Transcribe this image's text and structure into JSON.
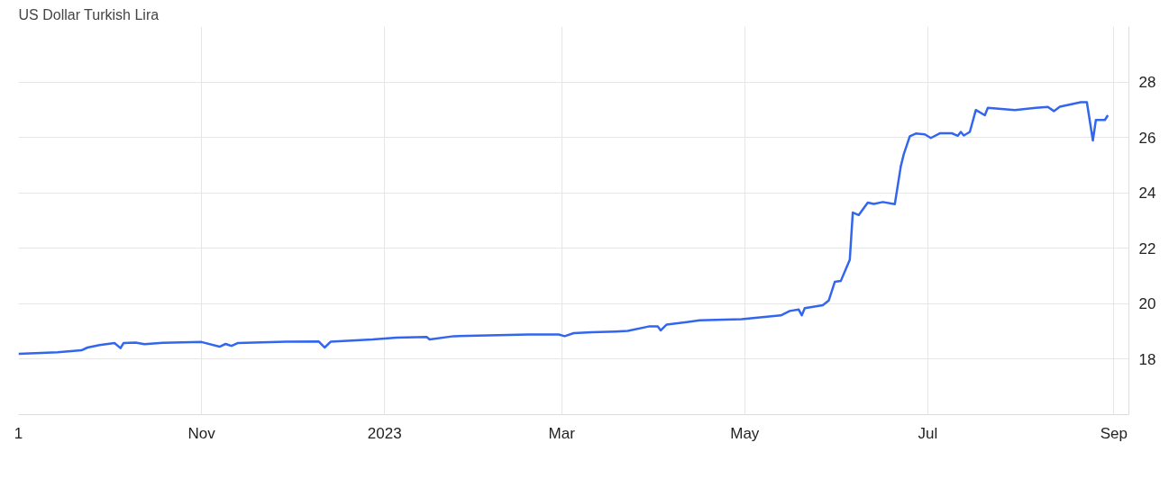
{
  "chart_data": {
    "type": "line",
    "title": "US Dollar Turkish Lira",
    "x": [
      "2022-09-01",
      "2022-09-14",
      "2022-09-22",
      "2022-09-24",
      "2022-09-28",
      "2022-10-03",
      "2022-10-05",
      "2022-10-06",
      "2022-10-10",
      "2022-10-13",
      "2022-10-19",
      "2022-11-01",
      "2022-11-07",
      "2022-11-09",
      "2022-11-11",
      "2022-11-13",
      "2022-11-29",
      "2022-12-10",
      "2022-12-12",
      "2022-12-14",
      "2022-12-28",
      "2023-01-05",
      "2023-01-15",
      "2023-01-16",
      "2023-01-24",
      "2023-02-18",
      "2023-02-28",
      "2023-03-02",
      "2023-03-05",
      "2023-03-11",
      "2023-03-19",
      "2023-03-23",
      "2023-03-30",
      "2023-04-02",
      "2023-04-03",
      "2023-04-05",
      "2023-04-16",
      "2023-04-30",
      "2023-05-13",
      "2023-05-16",
      "2023-05-19",
      "2023-05-20",
      "2023-05-21",
      "2023-05-27",
      "2023-05-29",
      "2023-05-31",
      "2023-06-02",
      "2023-06-05",
      "2023-06-06",
      "2023-06-08",
      "2023-06-11",
      "2023-06-13",
      "2023-06-16",
      "2023-06-20",
      "2023-06-22",
      "2023-06-23",
      "2023-06-25",
      "2023-06-27",
      "2023-06-30",
      "2023-07-02",
      "2023-07-05",
      "2023-07-09",
      "2023-07-11",
      "2023-07-12",
      "2023-07-13",
      "2023-07-15",
      "2023-07-17",
      "2023-07-20",
      "2023-07-21",
      "2023-07-30",
      "2023-08-06",
      "2023-08-10",
      "2023-08-12",
      "2023-08-14",
      "2023-08-21",
      "2023-08-23",
      "2023-08-25",
      "2023-08-26",
      "2023-08-29",
      "2023-08-30"
    ],
    "series": [
      {
        "color": "#3366ee",
        "values": [
          18.19,
          18.25,
          18.32,
          18.42,
          18.51,
          18.58,
          18.4,
          18.58,
          18.6,
          18.54,
          18.59,
          18.62,
          18.45,
          18.55,
          18.48,
          18.58,
          18.63,
          18.64,
          18.42,
          18.63,
          18.71,
          18.78,
          18.8,
          18.71,
          18.83,
          18.89,
          18.89,
          18.83,
          18.94,
          18.97,
          19.0,
          19.02,
          19.18,
          19.18,
          19.04,
          19.25,
          19.4,
          19.44,
          19.58,
          19.74,
          19.79,
          19.58,
          19.84,
          19.95,
          20.12,
          20.79,
          20.82,
          21.59,
          23.29,
          23.2,
          23.65,
          23.6,
          23.67,
          23.59,
          24.96,
          25.4,
          26.04,
          26.14,
          26.11,
          25.98,
          26.15,
          26.15,
          26.06,
          26.2,
          26.07,
          26.2,
          26.99,
          26.8,
          27.07,
          26.99,
          27.07,
          27.1,
          26.95,
          27.11,
          27.27,
          27.27,
          25.89,
          26.63,
          26.63,
          26.8
        ]
      }
    ],
    "xlim": [
      "2022-09-01",
      "2023-09-06"
    ],
    "xticks": [
      {
        "value": "2022-09-01",
        "label": "1"
      },
      {
        "value": "2022-11-01",
        "label": "Nov"
      },
      {
        "value": "2023-01-01",
        "label": "2023"
      },
      {
        "value": "2023-03-01",
        "label": "Mar"
      },
      {
        "value": "2023-05-01",
        "label": "May"
      },
      {
        "value": "2023-07-01",
        "label": "Jul"
      },
      {
        "value": "2023-09-01",
        "label": "Sep"
      }
    ],
    "ylim": [
      16,
      30
    ],
    "yticks": [
      18,
      20,
      22,
      24,
      26,
      28
    ],
    "grid": true,
    "marker": "none",
    "line_style": "solid"
  }
}
